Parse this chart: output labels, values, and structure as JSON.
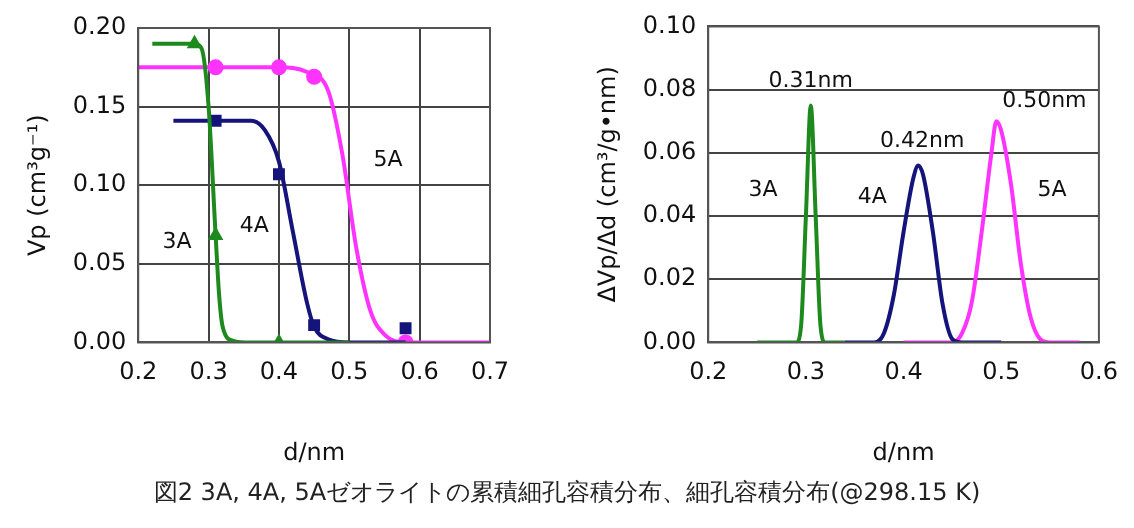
{
  "chart_data": [
    {
      "type": "line",
      "xlabel": "d/nm",
      "ylabel": "Vp (cm³g⁻¹)",
      "xlim": [
        0.2,
        0.7
      ],
      "xticks": [
        0.2,
        0.3,
        0.4,
        0.5,
        0.6,
        0.7
      ],
      "ylim": [
        0,
        0.2
      ],
      "yticks": [
        {
          "value": 0,
          "label": "0.00"
        },
        {
          "value": 0.05,
          "label": "0.05"
        },
        {
          "value": 0.1,
          "label": "0.10"
        },
        {
          "value": 0.15,
          "label": "0.15"
        },
        {
          "value": 0.2,
          "label": "0.20"
        }
      ],
      "grid": true,
      "legend": false,
      "series": [
        {
          "type": "line",
          "name": "3A",
          "color": "#1e8a1e",
          "x": [
            0.22,
            0.28,
            0.29,
            0.3,
            0.31,
            0.315,
            0.32,
            0.335,
            0.36,
            0.4,
            0.5
          ],
          "values": [
            0.19,
            0.19,
            0.187,
            0.15,
            0.068,
            0.03,
            0.01,
            0.001,
            0,
            0,
            0
          ]
        },
        {
          "type": "line",
          "name": "4A",
          "color": "#14147a",
          "x": [
            0.25,
            0.31,
            0.36,
            0.38,
            0.4,
            0.42,
            0.44,
            0.45,
            0.47,
            0.5,
            0.58
          ],
          "values": [
            0.141,
            0.141,
            0.141,
            0.135,
            0.115,
            0.07,
            0.025,
            0.01,
            0.002,
            0,
            0
          ]
        },
        {
          "type": "line",
          "name": "5A",
          "color": "#ff33ff",
          "x": [
            0.2,
            0.4,
            0.44,
            0.47,
            0.49,
            0.51,
            0.53,
            0.55,
            0.58,
            0.7
          ],
          "values": [
            0.175,
            0.175,
            0.172,
            0.16,
            0.12,
            0.06,
            0.02,
            0.005,
            0,
            0
          ]
        },
        {
          "type": "scatter",
          "marker": "triangle",
          "color": "#1e8a1e",
          "x": [
            0.28,
            0.31,
            0.4
          ],
          "values": [
            0.19,
            0.068,
            0
          ]
        },
        {
          "type": "scatter",
          "marker": "square",
          "color": "#14147a",
          "x": [
            0.31,
            0.4,
            0.45,
            0.58
          ],
          "values": [
            0.141,
            0.107,
            0.011,
            0.009
          ]
        },
        {
          "type": "scatter",
          "marker": "circle",
          "color": "#ff33ff",
          "x": [
            0.31,
            0.4,
            0.45,
            0.58
          ],
          "values": [
            0.175,
            0.175,
            0.169,
            0
          ]
        }
      ],
      "annotations": [
        "図2  3A, 4A, 5Aゼオライトの累積細孔容積分布、細孔容積分布(@298.15 K)"
      ]
    },
    {
      "type": "line",
      "xlabel": "d/nm",
      "ylabel": "ΔVp/Δd (cm³/g•nm)",
      "xlim": [
        0.2,
        0.6
      ],
      "xticks": [
        0.2,
        0.3,
        0.4,
        0.5,
        0.6
      ],
      "ylim": [
        0,
        0.1
      ],
      "yticks": [
        {
          "value": 0,
          "label": "0.00"
        },
        {
          "value": 0.02,
          "label": "0.02"
        },
        {
          "value": 0.04,
          "label": "0.04"
        },
        {
          "value": 0.06,
          "label": "0.06"
        },
        {
          "value": 0.08,
          "label": "0.08"
        },
        {
          "value": 0.1,
          "label": "0.10"
        }
      ],
      "grid": "y",
      "legend": false,
      "series": [
        {
          "type": "line",
          "name": "3A",
          "color": "#1e8a1e",
          "x": [
            0.25,
            0.29,
            0.295,
            0.3,
            0.305,
            0.31,
            0.315,
            0.32,
            0.34
          ],
          "values": [
            0,
            0,
            0.005,
            0.04,
            0.075,
            0.04,
            0.005,
            0,
            0
          ]
        },
        {
          "type": "line",
          "name": "4A",
          "color": "#14147a",
          "x": [
            0.34,
            0.37,
            0.38,
            0.39,
            0.4,
            0.41,
            0.415,
            0.42,
            0.43,
            0.44,
            0.45,
            0.46,
            0.5
          ],
          "values": [
            0,
            0,
            0.003,
            0.015,
            0.035,
            0.052,
            0.056,
            0.053,
            0.035,
            0.012,
            0.001,
            0,
            0
          ]
        },
        {
          "type": "line",
          "name": "5A",
          "color": "#ff33ff",
          "x": [
            0.4,
            0.45,
            0.46,
            0.47,
            0.48,
            0.49,
            0.495,
            0.5,
            0.51,
            0.52,
            0.53,
            0.54,
            0.55,
            0.58
          ],
          "values": [
            0,
            0,
            0.003,
            0.013,
            0.035,
            0.06,
            0.07,
            0.067,
            0.05,
            0.025,
            0.008,
            0.001,
            0,
            0
          ]
        }
      ],
      "annotations": [
        {
          "text": "0.31nm",
          "x": 0.305,
          "y": 0.075
        },
        {
          "text": "0.42nm",
          "x": 0.415,
          "y": 0.056
        },
        {
          "text": "0.50nm",
          "x": 0.495,
          "y": 0.07
        }
      ]
    }
  ]
}
